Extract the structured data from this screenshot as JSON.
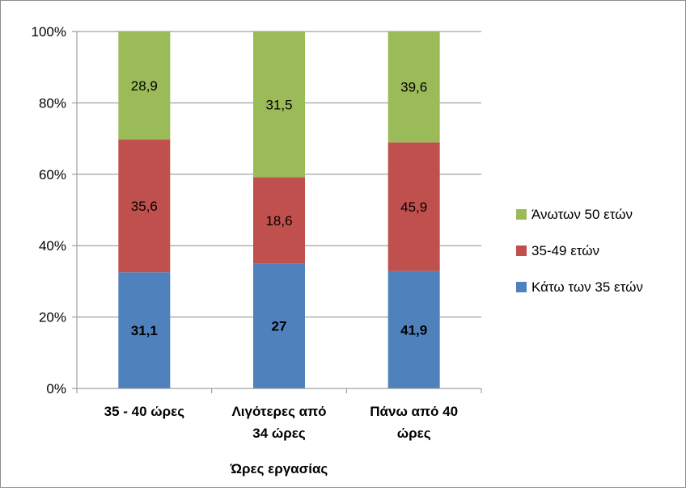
{
  "chart_data": {
    "type": "bar",
    "stacked": "percent",
    "categories": [
      [
        "35 - 40 ώρες"
      ],
      [
        "Λιγότερες από",
        "34 ώρες"
      ],
      [
        "Πάνω από 40",
        "ώρες"
      ]
    ],
    "series": [
      {
        "name": "Κάτω των 35 ετών",
        "values": [
          31.1,
          27,
          41.9
        ],
        "labels": [
          "31,1",
          "27",
          "41,9"
        ],
        "color": "#4f81bd",
        "bold_labels": true
      },
      {
        "name": "35-49 ετών",
        "values": [
          35.6,
          18.6,
          45.9
        ],
        "labels": [
          "35,6",
          "18,6",
          "45,9"
        ],
        "color": "#c0504d",
        "bold_labels": false
      },
      {
        "name": "Άνωτων 50 ετών",
        "values": [
          28.9,
          31.5,
          39.6
        ],
        "labels": [
          "28,9",
          "31,5",
          "39,6"
        ],
        "color": "#9bbb59",
        "bold_labels": false
      }
    ],
    "y_ticks": [
      "0%",
      "20%",
      "40%",
      "60%",
      "80%",
      "100%"
    ],
    "ylim": [
      0,
      100
    ],
    "xlabel": "Ώρες εργασίας",
    "ylabel": "",
    "grid": true,
    "legend_position": "right"
  }
}
